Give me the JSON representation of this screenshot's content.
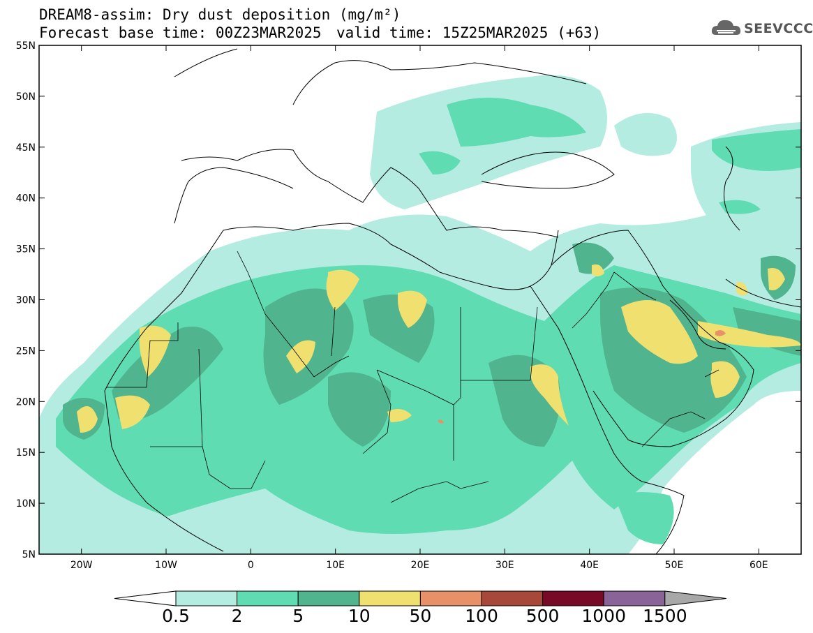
{
  "header": {
    "title": "DREAM8-assim: Dry dust deposition (mg/m²)",
    "base_time": "Forecast base time: 00Z23MAR2025",
    "valid_time": "valid time: 15Z25MAR2025 (+63)",
    "logo": "SEEVCCC"
  },
  "map": {
    "lon_range": [
      -25,
      65
    ],
    "lat_range": [
      5,
      55
    ],
    "lat_ticks": [
      "5N",
      "10N",
      "15N",
      "20N",
      "25N",
      "30N",
      "35N",
      "40N",
      "45N",
      "50N",
      "55N"
    ],
    "lon_ticks": [
      "20W",
      "10W",
      "0",
      "10E",
      "20E",
      "30E",
      "40E",
      "50E",
      "60E"
    ]
  },
  "colorbar": {
    "levels": [
      "0.5",
      "2",
      "5",
      "10",
      "50",
      "100",
      "500",
      "1000",
      "1500"
    ],
    "colors": [
      "#b4ece2",
      "#5fdcb2",
      "#50b48e",
      "#f0e070",
      "#e89068",
      "#a8483a",
      "#780a28",
      "#8a6498"
    ],
    "over_color": "#a8a8a8"
  }
}
